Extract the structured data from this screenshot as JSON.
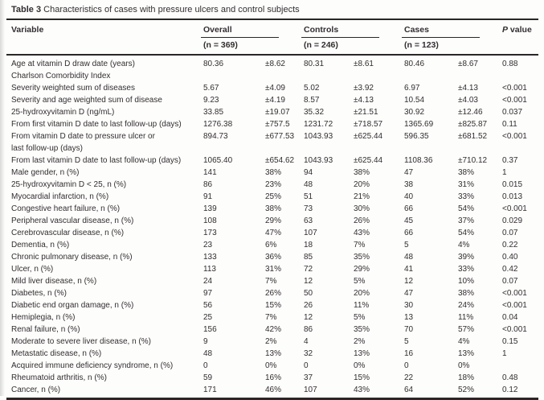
{
  "title": {
    "label": "Table 3",
    "text": " Characteristics of cases with pressure ulcers and control subjects"
  },
  "table": {
    "header": {
      "variable": "Variable",
      "p_italic": "P",
      "p_rest": " value",
      "groups": [
        {
          "label": "Overall",
          "n": "(n = 369)"
        },
        {
          "label": "Controls",
          "n": "(n = 246)"
        },
        {
          "label": "Cases",
          "n": "(n = 123)"
        }
      ]
    },
    "columns": [
      "Variable",
      "Overall value",
      "Overall ±/%",
      "Controls value",
      "Controls ±/%",
      "Cases value",
      "Cases ±/%",
      "P value"
    ],
    "rows": [
      {
        "label": "Age at vitamin D draw date (years)",
        "indent": false,
        "cells": [
          "80.36",
          "±8.62",
          "80.31",
          "±8.61",
          "80.46",
          "±8.67",
          "0.88"
        ]
      },
      {
        "label": "Charlson Comorbidity Index",
        "indent": false,
        "cells": [
          "",
          "",
          "",
          "",
          "",
          "",
          ""
        ]
      },
      {
        "label": "Severity weighted sum of diseases",
        "indent": true,
        "cells": [
          "5.67",
          "±4.09",
          "5.02",
          "±3.92",
          "6.97",
          "±4.13",
          "<0.001"
        ]
      },
      {
        "label": "Severity and age weighted sum of disease",
        "indent": true,
        "cells": [
          "9.23",
          "±4.19",
          "8.57",
          "±4.13",
          "10.54",
          "±4.03",
          "<0.001"
        ]
      },
      {
        "label": "25-hydroxyvitamin D (ng/mL)",
        "indent": false,
        "cells": [
          "33.85",
          "±19.07",
          "35.32",
          "±21.51",
          "30.92",
          "±12.46",
          "0.037"
        ]
      },
      {
        "label": "From first vitamin D date to last follow-up (days)",
        "indent": false,
        "cells": [
          "1276.38",
          "±757.5",
          "1231.72",
          "±718.57",
          "1365.69",
          "±825.87",
          "0.11"
        ]
      },
      {
        "label": "From vitamin D date to pressure ulcer or",
        "label2": "last follow-up (days)",
        "indent": false,
        "cells": [
          "894.73",
          "±677.53",
          "1043.93",
          "±625.44",
          "596.35",
          "±681.52",
          "<0.001"
        ]
      },
      {
        "label": "From last vitamin D date to last follow-up (days)",
        "indent": false,
        "cells": [
          "1065.40",
          "±654.62",
          "1043.93",
          "±625.44",
          "1108.36",
          "±710.12",
          "0.37"
        ]
      },
      {
        "label": "Male gender, n (%)",
        "indent": false,
        "cells": [
          "141",
          "38%",
          "94",
          "38%",
          "47",
          "38%",
          "1"
        ]
      },
      {
        "label": "25-hydroxyvitamin D < 25, n (%)",
        "indent": false,
        "cells": [
          "86",
          "23%",
          "48",
          "20%",
          "38",
          "31%",
          "0.015"
        ]
      },
      {
        "label": "Myocardial infarction, n (%)",
        "indent": false,
        "cells": [
          "91",
          "25%",
          "51",
          "21%",
          "40",
          "33%",
          "0.013"
        ]
      },
      {
        "label": "Congestive heart failure, n (%)",
        "indent": false,
        "cells": [
          "139",
          "38%",
          "73",
          "30%",
          "66",
          "54%",
          "<0.001"
        ]
      },
      {
        "label": "Peripheral vascular disease, n (%)",
        "indent": false,
        "cells": [
          "108",
          "29%",
          "63",
          "26%",
          "45",
          "37%",
          "0.029"
        ]
      },
      {
        "label": "Cerebrovascular disease, n (%)",
        "indent": false,
        "cells": [
          "173",
          "47%",
          "107",
          "43%",
          "66",
          "54%",
          "0.07"
        ]
      },
      {
        "label": "Dementia, n (%)",
        "indent": false,
        "cells": [
          "23",
          "6%",
          "18",
          "7%",
          "5",
          "4%",
          "0.22"
        ]
      },
      {
        "label": "Chronic pulmonary disease, n (%)",
        "indent": false,
        "cells": [
          "133",
          "36%",
          "85",
          "35%",
          "48",
          "39%",
          "0.40"
        ]
      },
      {
        "label": "Ulcer, n (%)",
        "indent": false,
        "cells": [
          "113",
          "31%",
          "72",
          "29%",
          "41",
          "33%",
          "0.42"
        ]
      },
      {
        "label": "Mild liver disease, n (%)",
        "indent": false,
        "cells": [
          "24",
          "7%",
          "12",
          "5%",
          "12",
          "10%",
          "0.07"
        ]
      },
      {
        "label": "Diabetes, n (%)",
        "indent": false,
        "cells": [
          "97",
          "26%",
          "50",
          "20%",
          "47",
          "38%",
          "<0.001"
        ]
      },
      {
        "label": "Diabetic end organ damage, n (%)",
        "indent": false,
        "cells": [
          "56",
          "15%",
          "26",
          "11%",
          "30",
          "24%",
          "<0.001"
        ]
      },
      {
        "label": "Hemiplegia, n (%)",
        "indent": false,
        "cells": [
          "25",
          "7%",
          "12",
          "5%",
          "13",
          "11%",
          "0.04"
        ]
      },
      {
        "label": "Renal failure, n (%)",
        "indent": false,
        "cells": [
          "156",
          "42%",
          "86",
          "35%",
          "70",
          "57%",
          "<0.001"
        ]
      },
      {
        "label": "Moderate to severe liver disease, n (%)",
        "indent": false,
        "cells": [
          "9",
          "2%",
          "4",
          "2%",
          "5",
          "4%",
          "0.15"
        ]
      },
      {
        "label": "Metastatic disease, n (%)",
        "indent": false,
        "cells": [
          "48",
          "13%",
          "32",
          "13%",
          "16",
          "13%",
          "1"
        ]
      },
      {
        "label": "Acquired immune deficiency syndrome, n (%)",
        "indent": false,
        "cells": [
          "0",
          "0%",
          "0",
          "0%",
          "0",
          "0%",
          ""
        ]
      },
      {
        "label": "Rheumatoid arthritis, n (%)",
        "indent": false,
        "cells": [
          "59",
          "16%",
          "37",
          "15%",
          "22",
          "18%",
          "0.48"
        ]
      },
      {
        "label": "Cancer, n (%)",
        "indent": false,
        "cells": [
          "171",
          "46%",
          "107",
          "43%",
          "64",
          "52%",
          "0.12"
        ]
      }
    ]
  }
}
